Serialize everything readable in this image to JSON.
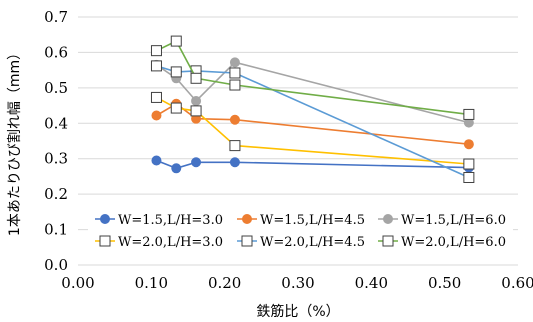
{
  "chart_data": {
    "type": "line",
    "title": "",
    "xlabel": "鉄筋比（%）",
    "ylabel": "1本あたりひび割れ幅（mm）",
    "xlim": [
      0.0,
      0.6
    ],
    "ylim": [
      0.0,
      0.7
    ],
    "xticks": [
      "0.00",
      "0.10",
      "0.20",
      "0.30",
      "0.40",
      "0.50",
      "0.60"
    ],
    "yticks": [
      "0.0",
      "0.1",
      "0.2",
      "0.3",
      "0.4",
      "0.5",
      "0.6",
      "0.7"
    ],
    "grid": "horizontal",
    "legend_position": "inside-bottom",
    "series": [
      {
        "name": "W=1.5,L/H=3.0",
        "color": "#4472C4",
        "marker": "circle",
        "x": [
          0.107,
          0.134,
          0.161,
          0.214,
          0.533
        ],
        "y": [
          0.295,
          0.273,
          0.29,
          0.29,
          0.275
        ]
      },
      {
        "name": "W=1.5,L/H=4.5",
        "color": "#ED7D31",
        "marker": "circle",
        "x": [
          0.107,
          0.134,
          0.161,
          0.214,
          0.533
        ],
        "y": [
          0.422,
          0.455,
          0.413,
          0.41,
          0.341
        ]
      },
      {
        "name": "W=1.5,L/H=6.0",
        "color": "#A5A5A5",
        "marker": "circle",
        "x": [
          0.107,
          0.134,
          0.161,
          0.214,
          0.533
        ],
        "y": [
          0.565,
          0.527,
          0.463,
          0.572,
          0.402
        ]
      },
      {
        "name": "W=2.0,L/H=3.0",
        "color": "#FFC000",
        "marker": "square",
        "x": [
          0.107,
          0.134,
          0.161,
          0.214,
          0.533
        ],
        "y": [
          0.473,
          0.443,
          0.435,
          0.337,
          0.285
        ]
      },
      {
        "name": "W=2.0,L/H=4.5",
        "color": "#5B9BD5",
        "marker": "square",
        "x": [
          0.107,
          0.134,
          0.161,
          0.214,
          0.533
        ],
        "y": [
          0.562,
          0.545,
          0.548,
          0.542,
          0.247
        ]
      },
      {
        "name": "W=2.0,L/H=6.0",
        "color": "#70AD47",
        "marker": "square",
        "x": [
          0.107,
          0.134,
          0.161,
          0.214,
          0.533
        ],
        "y": [
          0.605,
          0.632,
          0.527,
          0.508,
          0.425
        ]
      }
    ]
  }
}
